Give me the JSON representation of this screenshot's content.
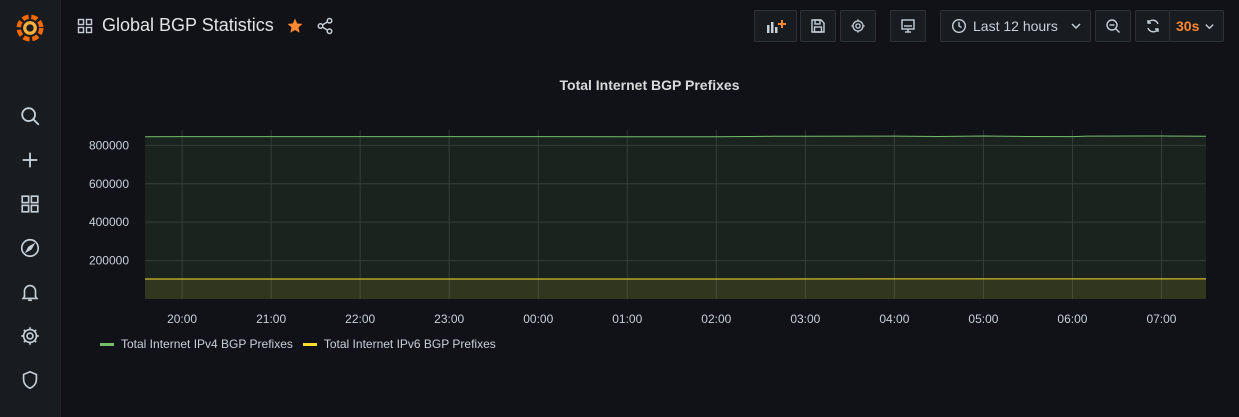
{
  "header": {
    "title": "Global BGP Statistics",
    "time_range_label": "Last 12 hours",
    "refresh_interval": "30s"
  },
  "colors": {
    "accent": "#ff8833",
    "ipv4": "#73bf69",
    "ipv6": "#fade2a"
  },
  "sidebar": {
    "items": [
      "grafana-logo-icon",
      "search-icon",
      "plus-icon",
      "dashboards-icon",
      "explore-icon",
      "alerting-icon",
      "configuration-icon",
      "shield-icon"
    ]
  },
  "panel": {
    "title": "Total Internet BGP Prefixes"
  },
  "chart_data": {
    "type": "area",
    "title": "Total Internet BGP Prefixes",
    "x_ticks": [
      "20:00",
      "21:00",
      "22:00",
      "23:00",
      "00:00",
      "01:00",
      "02:00",
      "03:00",
      "04:00",
      "05:00",
      "06:00",
      "07:00"
    ],
    "y_ticks": [
      200000,
      400000,
      600000,
      800000
    ],
    "y_tick_labels": [
      "200000",
      "400000",
      "600000",
      "800000"
    ],
    "ylim": [
      0,
      880000
    ],
    "x_range": [
      "19:35",
      "07:30"
    ],
    "grid": true,
    "legend_position": "bottom-left",
    "series": [
      {
        "name": "Total Internet IPv4 BGP Prefixes",
        "color": "#73bf69",
        "x": [
          "19:35",
          "20:00",
          "21:00",
          "22:00",
          "23:00",
          "00:00",
          "01:00",
          "02:00",
          "02:40",
          "03:00",
          "04:00",
          "04:30",
          "05:00",
          "05:30",
          "06:00",
          "06:10",
          "07:00",
          "07:30"
        ],
        "values": [
          845000,
          845500,
          845500,
          845500,
          845500,
          845500,
          845000,
          845000,
          847000,
          847500,
          848000,
          846000,
          849000,
          846000,
          845500,
          848000,
          848500,
          847000
        ]
      },
      {
        "name": "Total Internet IPv6 BGP Prefixes",
        "color": "#fade2a",
        "x": [
          "19:35",
          "07:30"
        ],
        "values": [
          104000,
          104500
        ]
      }
    ]
  },
  "legend": {
    "items": [
      {
        "label": "Total Internet IPv4 BGP Prefixes",
        "color": "#73bf69"
      },
      {
        "label": "Total Internet IPv6 BGP Prefixes",
        "color": "#fade2a"
      }
    ]
  }
}
